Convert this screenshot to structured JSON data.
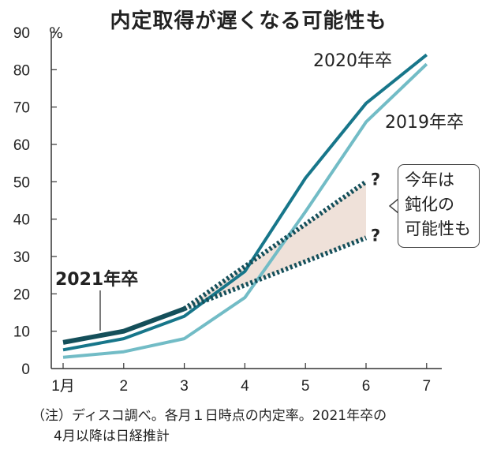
{
  "chart_data": {
    "type": "line",
    "title": "内定取得が遅くなる可能性も",
    "ylabel": "%",
    "ylim": [
      0,
      90
    ],
    "yticks": [
      0,
      10,
      20,
      30,
      40,
      50,
      60,
      70,
      80,
      90
    ],
    "categories": [
      "1月",
      "2",
      "3",
      "4",
      "5",
      "6",
      "7"
    ],
    "series": [
      {
        "name": "2020年卒",
        "color": "#17768a",
        "values": [
          5,
          8,
          14,
          26,
          51,
          71,
          84
        ]
      },
      {
        "name": "2019年卒",
        "color": "#72bcc6",
        "values": [
          3,
          4.5,
          8,
          19,
          42,
          66,
          81.5
        ]
      },
      {
        "name": "2021年卒",
        "color": "#144f5a",
        "values": [
          7,
          10,
          16,
          null,
          null,
          null,
          null
        ]
      }
    ],
    "projection": {
      "upper": {
        "from": [
          3,
          16
        ],
        "to": [
          6,
          50
        ],
        "label": "?"
      },
      "lower": {
        "from": [
          3,
          16
        ],
        "to": [
          6,
          35
        ],
        "label": "?"
      },
      "fill_color": "#efe1d9"
    },
    "annotation": [
      "今年は",
      "鈍化の",
      "可能性も"
    ],
    "grid": false
  },
  "notes": [
    "（注）ディスコ調べ。各月１日時点の内定率。2021年卒の",
    "4月以降は日経推計"
  ]
}
